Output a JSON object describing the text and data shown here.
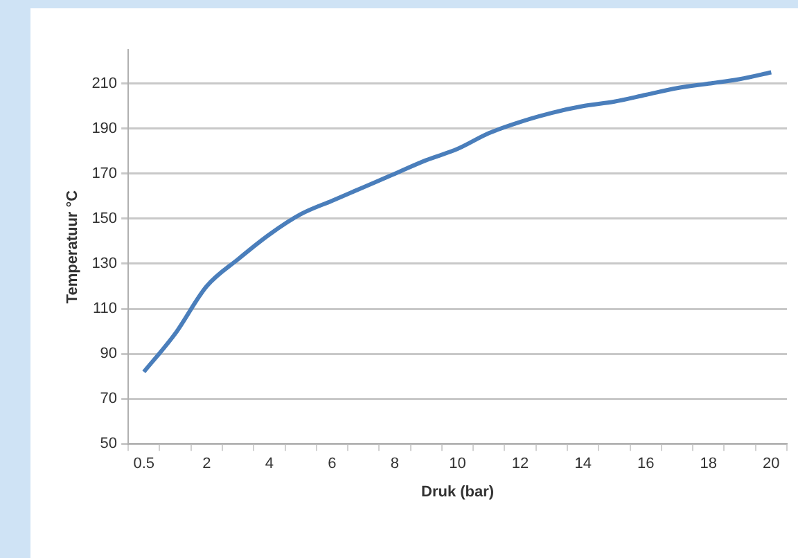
{
  "chart_data": {
    "type": "line",
    "xlabel": "Druk (bar)",
    "ylabel": "Temperatuur °C",
    "categories": [
      "0.5",
      null,
      "2",
      null,
      "4",
      null,
      "6",
      null,
      "8",
      null,
      "10",
      null,
      "12",
      null,
      "14",
      null,
      "16",
      null,
      "18",
      null,
      "20"
    ],
    "series": [
      {
        "color": "#4a7ebb",
        "values": [
          82,
          99,
          120,
          132,
          143,
          152,
          158,
          164,
          170,
          176,
          181,
          188,
          193,
          197,
          200,
          202,
          205,
          208,
          210,
          212,
          215
        ]
      }
    ],
    "ylim": [
      50,
      225
    ],
    "yticks": [
      50,
      70,
      90,
      110,
      130,
      150,
      170,
      190,
      210
    ],
    "grid": "y",
    "legend": false,
    "marker": "none",
    "line_style": "solid"
  }
}
